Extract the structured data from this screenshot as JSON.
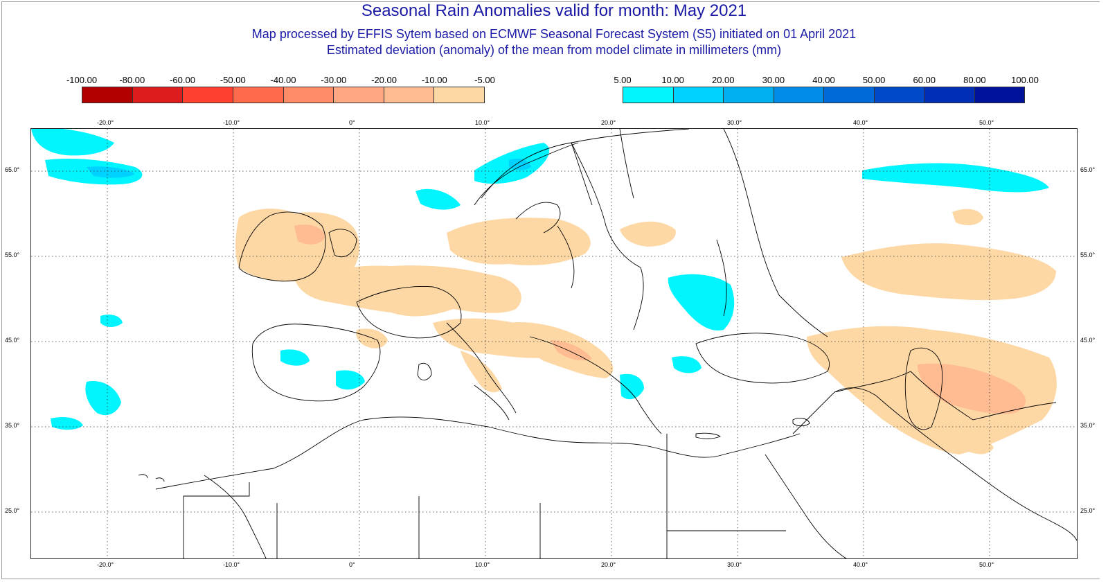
{
  "title": "Seasonal Rain Anomalies valid for month: May 2021",
  "subtitle1": "Map processed by EFFIS Sytem based on ECMWF Seasonal Forecast System (S5) initiated on 01 April 2021",
  "subtitle2": "Estimated deviation (anomaly) of the mean from model climate in millimeters (mm)",
  "legend_negative": {
    "labels": [
      "-100.00",
      "-80.00",
      "-60.00",
      "-50.00",
      "-40.00",
      "-30.00",
      "-20.00",
      "-10.00",
      "-5.00"
    ],
    "colors": [
      "#b20000",
      "#dd1d1d",
      "#ff3f2f",
      "#ff6a4d",
      "#ff8c69",
      "#ffa682",
      "#ffbb91",
      "#fdd8a5"
    ]
  },
  "legend_positive": {
    "labels": [
      "5.00",
      "10.00",
      "20.00",
      "30.00",
      "40.00",
      "50.00",
      "60.00",
      "80.00",
      "100.00"
    ],
    "colors": [
      "#00f5ff",
      "#00d2ff",
      "#00aff0",
      "#008ce8",
      "#006bd8",
      "#004ac8",
      "#002eb4",
      "#00129a"
    ]
  },
  "map": {
    "lon_labels": [
      "-20.0°",
      "-10.0°",
      "0°",
      "10.0°",
      "20.0°",
      "30.0°",
      "40.0°",
      "50.0°"
    ],
    "lat_labels": [
      "65.0°",
      "55.0°",
      "45.0°",
      "35.0°",
      "25.0°"
    ],
    "lon_values": [
      -20,
      -10,
      0,
      10,
      20,
      30,
      40,
      50
    ],
    "lat_values": [
      65,
      55,
      45,
      35,
      25
    ]
  }
}
